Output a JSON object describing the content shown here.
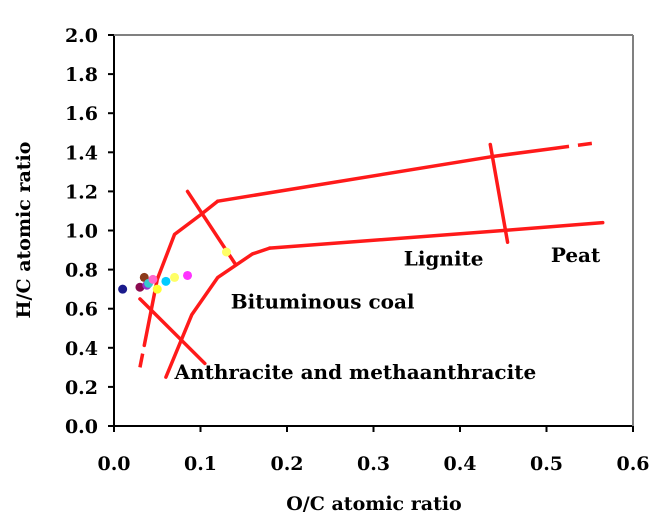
{
  "chart_data": {
    "type": "scatter",
    "xlabel": "O/C atomic ratio",
    "ylabel": "H/C atomic ratio",
    "xlim": [
      0.0,
      0.6
    ],
    "ylim": [
      0.0,
      2.0
    ],
    "x_ticks": [
      "0.0",
      "0.1",
      "0.2",
      "0.3",
      "0.4",
      "0.5",
      "0.6"
    ],
    "y_ticks": [
      "0.0",
      "0.2",
      "0.4",
      "0.6",
      "0.8",
      "1.0",
      "1.2",
      "1.4",
      "1.6",
      "1.8",
      "2.0"
    ],
    "grid": false,
    "colors": {
      "boundary": "#ff1a1a",
      "axes_frame": "#808080"
    },
    "points": [
      {
        "x": 0.01,
        "y": 0.7,
        "color": "#1a1a8c"
      },
      {
        "x": 0.03,
        "y": 0.71,
        "color": "#8b0a50"
      },
      {
        "x": 0.035,
        "y": 0.76,
        "color": "#8b3a1a"
      },
      {
        "x": 0.038,
        "y": 0.72,
        "color": "#9933cc"
      },
      {
        "x": 0.04,
        "y": 0.73,
        "color": "#33cccc"
      },
      {
        "x": 0.045,
        "y": 0.75,
        "color": "#ff66cc"
      },
      {
        "x": 0.05,
        "y": 0.7,
        "color": "#ffff33"
      },
      {
        "x": 0.06,
        "y": 0.74,
        "color": "#00ccff"
      },
      {
        "x": 0.07,
        "y": 0.76,
        "color": "#ffff66"
      },
      {
        "x": 0.085,
        "y": 0.77,
        "color": "#ff33ff"
      },
      {
        "x": 0.13,
        "y": 0.89,
        "color": "#ffff66"
      }
    ],
    "boundary_lines": [
      {
        "points": [
          [
            0.12,
            1.15
          ],
          [
            0.44,
            1.38
          ],
          [
            0.56,
            1.45
          ]
        ],
        "dashed_from_x": 0.51
      },
      {
        "points": [
          [
            0.03,
            0.3
          ],
          [
            0.05,
            0.75
          ],
          [
            0.07,
            0.98
          ],
          [
            0.1,
            1.08
          ],
          [
            0.12,
            1.15
          ]
        ],
        "dashed_until_x": 0.035
      },
      {
        "points": [
          [
            0.18,
            0.91
          ],
          [
            0.45,
            1.0
          ],
          [
            0.565,
            1.04
          ]
        ]
      },
      {
        "points": [
          [
            0.06,
            0.25
          ],
          [
            0.09,
            0.57
          ],
          [
            0.12,
            0.76
          ],
          [
            0.16,
            0.88
          ],
          [
            0.18,
            0.91
          ]
        ]
      },
      {
        "points": [
          [
            0.085,
            1.2
          ],
          [
            0.14,
            0.83
          ]
        ]
      },
      {
        "points": [
          [
            0.435,
            1.44
          ],
          [
            0.455,
            0.94
          ]
        ]
      },
      {
        "points": [
          [
            0.03,
            0.65
          ],
          [
            0.105,
            0.32
          ]
        ]
      }
    ],
    "annotations": [
      {
        "text": "Lignite",
        "x": 0.335,
        "y": 0.82
      },
      {
        "text": "Peat",
        "x": 0.505,
        "y": 0.84
      },
      {
        "text": "Bituminous coal",
        "x": 0.135,
        "y": 0.6
      },
      {
        "text": "Anthracite and methaanthracite",
        "x": 0.07,
        "y": 0.24
      }
    ]
  }
}
